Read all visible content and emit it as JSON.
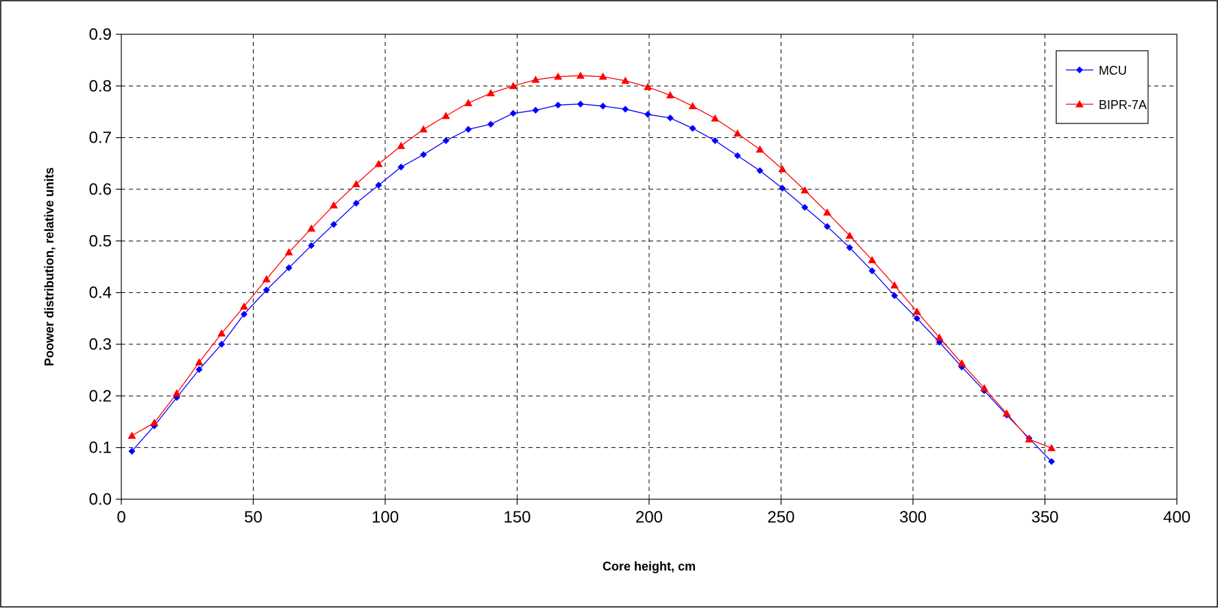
{
  "chart_data": {
    "type": "line",
    "title": "",
    "xlabel": "Core height, cm",
    "ylabel": "Poower distribution, relative units",
    "xlim": [
      0,
      400
    ],
    "ylim": [
      0,
      0.9
    ],
    "x_ticks": [
      "0",
      "50",
      "100",
      "150",
      "200",
      "250",
      "300",
      "350",
      "400"
    ],
    "y_ticks": [
      "0.0",
      "0.1",
      "0.2",
      "0.3",
      "0.4",
      "0.5",
      "0.6",
      "0.7",
      "0.8",
      "0.9"
    ],
    "grid": true,
    "legend_position": "top-right",
    "series": [
      {
        "name": "MCU",
        "color": "#0000FF",
        "marker": "diamond",
        "x": [
          4,
          12.5,
          21,
          29.5,
          38,
          46.5,
          55,
          63.5,
          72,
          80.5,
          89,
          97.5,
          106,
          114.5,
          123,
          131.5,
          140,
          148.5,
          157,
          165.5,
          174,
          182.5,
          191,
          199.5,
          208,
          216.5,
          225,
          233.5,
          242,
          250.5,
          259,
          267.5,
          276,
          284.5,
          293,
          301.5,
          310,
          318.5,
          327,
          335.5,
          344,
          352.5
        ],
        "y": [
          0.093,
          0.142,
          0.197,
          0.251,
          0.3,
          0.358,
          0.405,
          0.448,
          0.491,
          0.532,
          0.573,
          0.608,
          0.643,
          0.667,
          0.694,
          0.716,
          0.726,
          0.747,
          0.753,
          0.763,
          0.765,
          0.761,
          0.755,
          0.745,
          0.738,
          0.718,
          0.694,
          0.665,
          0.636,
          0.602,
          0.565,
          0.528,
          0.487,
          0.442,
          0.394,
          0.35,
          0.304,
          0.256,
          0.21,
          0.163,
          0.118,
          0.073
        ]
      },
      {
        "name": "BIPR-7A",
        "color": "#FF0000",
        "marker": "triangle",
        "x": [
          4,
          12.5,
          21,
          29.5,
          38,
          46.5,
          55,
          63.5,
          72,
          80.5,
          89,
          97.5,
          106,
          114.5,
          123,
          131.5,
          140,
          148.5,
          157,
          165.5,
          174,
          182.5,
          191,
          199.5,
          208,
          216.5,
          225,
          233.5,
          242,
          250.5,
          259,
          267.5,
          276,
          284.5,
          293,
          301.5,
          310,
          318.5,
          327,
          335.5,
          344,
          352.5
        ],
        "y": [
          0.123,
          0.148,
          0.205,
          0.265,
          0.321,
          0.373,
          0.426,
          0.478,
          0.524,
          0.569,
          0.61,
          0.649,
          0.684,
          0.716,
          0.742,
          0.767,
          0.786,
          0.8,
          0.812,
          0.818,
          0.82,
          0.818,
          0.81,
          0.798,
          0.782,
          0.761,
          0.737,
          0.708,
          0.677,
          0.639,
          0.598,
          0.555,
          0.51,
          0.463,
          0.414,
          0.363,
          0.313,
          0.263,
          0.215,
          0.166,
          0.116,
          0.099
        ]
      }
    ]
  }
}
